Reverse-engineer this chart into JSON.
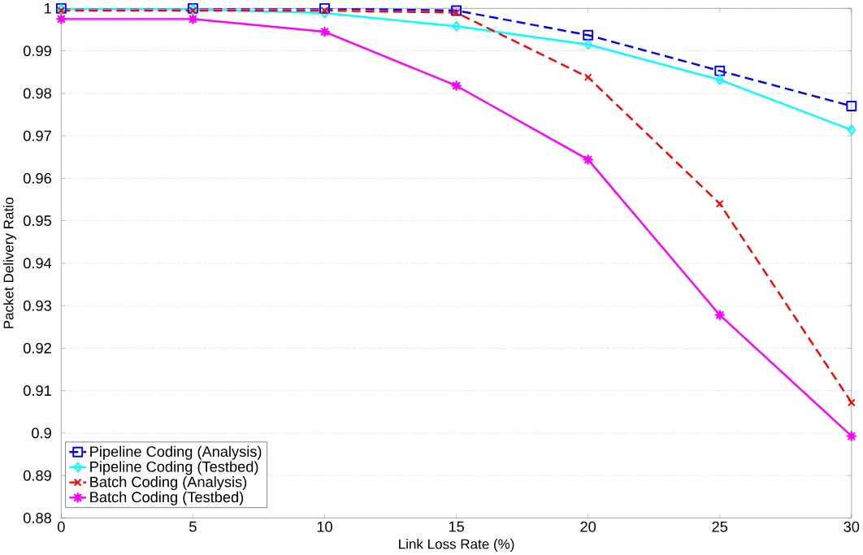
{
  "chart_data": {
    "type": "line",
    "xlabel": "Link Loss Rate (%)",
    "ylabel": "Packet Delivery Ratio",
    "x": [
      0,
      5,
      10,
      15,
      20,
      25,
      30
    ],
    "xlim": [
      0,
      30
    ],
    "xticks": [
      0,
      5,
      10,
      15,
      20,
      25,
      30
    ],
    "ylim": [
      0.88,
      1
    ],
    "yticks": [
      0.88,
      0.89,
      0.9,
      0.91,
      0.92,
      0.93,
      0.94,
      0.95,
      0.96,
      0.97,
      0.98,
      0.99,
      1
    ],
    "grid": "y",
    "legend": "bottom left",
    "series": [
      {
        "name": "Pipeline Coding (Analysis)",
        "color": "#0000ff",
        "marker": "square",
        "line_style": "dashed",
        "values": [
          1,
          1,
          1,
          0.9995,
          0.9937,
          0.9853,
          0.977
        ]
      },
      {
        "name": "Pipeline Coding (Testbed)",
        "color": "#00ffff",
        "marker": "diamond",
        "line_style": "solid",
        "values": [
          0.9998,
          0.9998,
          0.9989,
          0.9958,
          0.9915,
          0.9832,
          0.9714
        ]
      },
      {
        "name": "Batch Coding (Analysis)",
        "color": "#ff0000",
        "marker": "cross",
        "line_style": "dashed",
        "values": [
          0.9995,
          0.9995,
          0.9995,
          0.999,
          0.9838,
          0.954,
          0.9072
        ]
      },
      {
        "name": "Batch Coding (Testbed)",
        "color": "#ff00ff",
        "marker": "star",
        "line_style": "solid",
        "values": [
          0.9975,
          0.9975,
          0.9945,
          0.9818,
          0.9644,
          0.9278,
          0.8993
        ]
      }
    ]
  }
}
